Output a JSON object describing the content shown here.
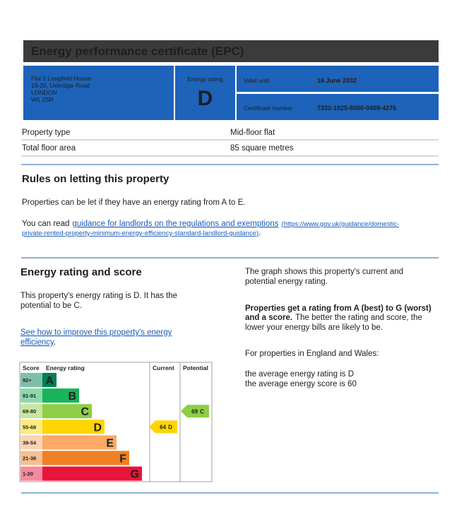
{
  "header": {
    "title": "Energy performance certificate (EPC)"
  },
  "certificate": {
    "address": [
      "Flat 5 Longfield House",
      "18-20, Uxbridge Road",
      "LONDON",
      "W5 2SR"
    ],
    "rating_label": "Energy rating",
    "rating": "D",
    "valid_label": "Valid until",
    "valid": "16 June 2032",
    "number_label": "Certificate number",
    "number": "7332-1025-6000-0409-4276"
  },
  "property": {
    "rows": [
      [
        "Property type",
        "Mid-floor flat"
      ],
      [
        "Total floor area",
        "85 square metres"
      ]
    ]
  },
  "rules": {
    "title": "Rules on letting this property",
    "text": "Properties can be let if they have an energy rating from A to E.",
    "link_intro": "You can read",
    "link_text": "guidance for landlords on the regulations and exemptions",
    "link_url_lines": [
      "(https://www.gov.uk/guidance/domestic-",
      "private-rented-property-minimum-energy-efficiency-standard-landlord-guidance)"
    ],
    "link_end": "."
  },
  "rating": {
    "title": "Energy rating and score",
    "text_lines": [
      "This property's energy rating is D. It has the",
      "potential to be C."
    ],
    "link_lines": [
      "See how to improve this property's energy",
      "efficiency"
    ],
    "link_end": "."
  },
  "info": {
    "para1": [
      "The graph shows this property's current and",
      "potential energy rating."
    ],
    "para2_bold": [
      "Properties get a rating from A (best) to G (worst)",
      "and a score."
    ],
    "para2_normal": [
      "The better the rating and score, the",
      "lower your energy bills are likely to be."
    ],
    "para3": "For properties in England and Wales:",
    "para4": [
      "the average energy rating is D",
      "the average energy score is 60"
    ]
  },
  "rating_chart": {
    "headers": [
      "Score",
      "Energy rating",
      "Current",
      "Potential"
    ],
    "bands": [
      {
        "score": "92+",
        "letter": "A",
        "color": "#008054",
        "light": "#7fbfa9"
      },
      {
        "score": "81-91",
        "letter": "B",
        "color": "#19b459",
        "light": "#8cd9ac"
      },
      {
        "score": "69-80",
        "letter": "C",
        "color": "#8dce46",
        "light": "#c6e6a2"
      },
      {
        "score": "55-68",
        "letter": "D",
        "color": "#ffd500",
        "light": "#ffea80"
      },
      {
        "score": "39-54",
        "letter": "E",
        "color": "#fcaa65",
        "light": "#fdd4b2"
      },
      {
        "score": "21-38",
        "letter": "F",
        "color": "#ef8023",
        "light": "#f7bf91"
      },
      {
        "score": "1-20",
        "letter": "G",
        "color": "#e9153b",
        "light": "#f48a9d"
      }
    ],
    "current": {
      "value": 64,
      "letter": "D"
    },
    "potential": {
      "value": 69,
      "letter": "C"
    }
  }
}
